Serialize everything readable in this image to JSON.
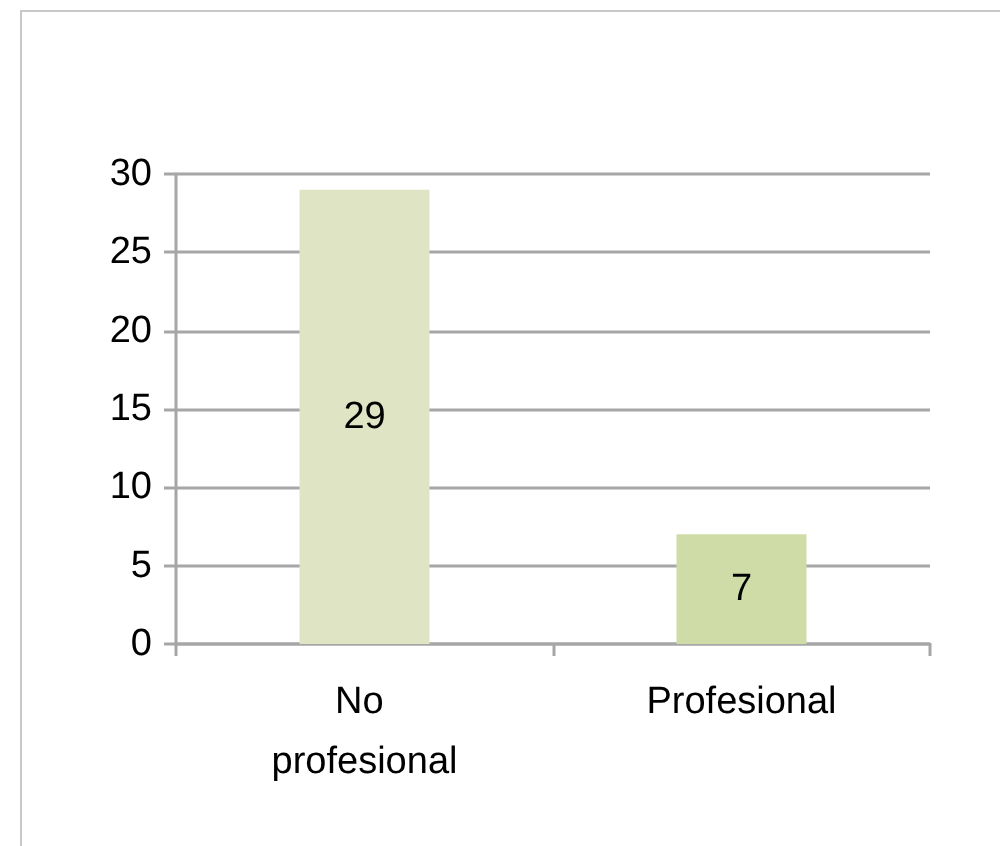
{
  "chart_data": {
    "type": "bar",
    "categories": [
      "No profesional",
      "Profesional"
    ],
    "values": [
      29,
      7
    ],
    "colors": [
      "#dfe5c4",
      "#cfdca8"
    ],
    "ylim": [
      0,
      30
    ],
    "yticks": [
      0,
      5,
      10,
      15,
      20,
      25,
      30
    ],
    "grid": "y",
    "data_labels": true
  }
}
